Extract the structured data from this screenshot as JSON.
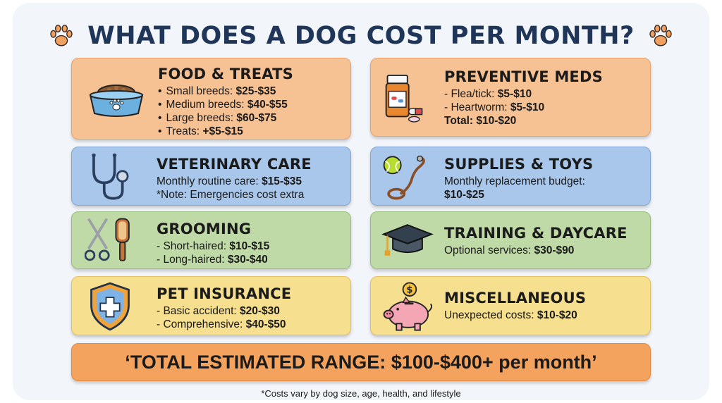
{
  "title": "WHAT DOES A DOG COST PER MONTH?",
  "cards": {
    "food": {
      "heading": "FOOD & TREATS",
      "items": [
        {
          "label": "Small breeds:",
          "value": "$25-$35"
        },
        {
          "label": "Medium breeds:",
          "value": "$40-$55"
        },
        {
          "label": "Large breeds:",
          "value": "$60-$75"
        },
        {
          "label": "Treats:",
          "value": "+$5-$15"
        }
      ],
      "icon": "dog-bowl-icon"
    },
    "preventive": {
      "heading": "PREVENTIVE MEDS",
      "items": [
        {
          "label": "- Flea/tick:",
          "value": "$5-$10"
        },
        {
          "label": "- Heartworm:",
          "value": "$5-$10"
        }
      ],
      "total": "Total: $10-$20",
      "icon": "pill-bottle-icon"
    },
    "vet": {
      "heading": "VETERINARY CARE",
      "items": [
        {
          "label": "Monthly routine care:",
          "value": "$15-$35"
        }
      ],
      "note": "*Note: Emergencies cost extra",
      "icon": "stethoscope-icon"
    },
    "supplies": {
      "heading": "SUPPLIES & TOYS",
      "line1": "Monthly replacement budget:",
      "line2": "$10-$25",
      "icon": "ball-and-leash-icon"
    },
    "grooming": {
      "heading": "GROOMING",
      "items": [
        {
          "label": "- Short-haired:",
          "value": "$10-$15"
        },
        {
          "label": "- Long-haired:",
          "value": "$30-$40"
        }
      ],
      "icon": "scissors-and-brush-icon"
    },
    "training": {
      "heading": "TRAINING & DAYCARE",
      "items": [
        {
          "label": "Optional services:",
          "value": "$30-$90"
        }
      ],
      "icon": "graduation-cap-icon"
    },
    "insurance": {
      "heading": "PET INSURANCE",
      "items": [
        {
          "label": "- Basic accident:",
          "value": "$20-$30"
        },
        {
          "label": "- Comprehensive:",
          "value": "$40-$50"
        }
      ],
      "icon": "shield-icon"
    },
    "misc": {
      "heading": "MISCELLANEOUS",
      "items": [
        {
          "label": "Unexpected costs:",
          "value": "$10-$20"
        }
      ],
      "icon": "piggy-bank-icon"
    }
  },
  "total_banner": "‘TOTAL ESTIMATED RANGE: $100-$400+ per month’",
  "footnote": "*Costs vary by dog size, age, health, and lifestyle",
  "colors": {
    "title": "#1f3658",
    "orange": "#f6c193",
    "blue": "#a9c7ea",
    "green": "#bfd9a7",
    "yellow": "#f6df8f",
    "total": "#f3a35e"
  }
}
